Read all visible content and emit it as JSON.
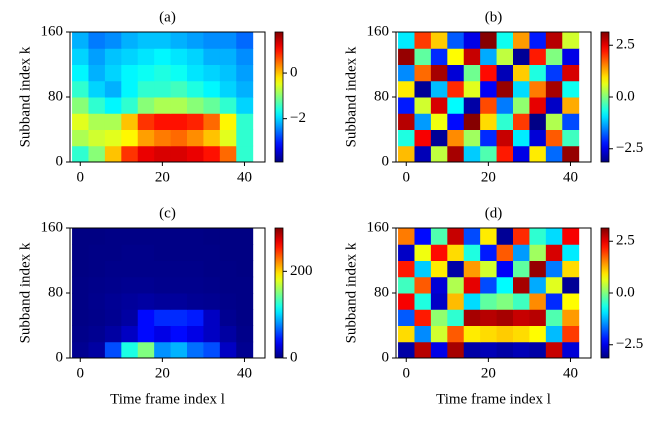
{
  "chart_data": [
    {
      "type": "heatmap",
      "title": "(a)",
      "ylabel": "Subband index k",
      "colormap": "jet",
      "x": [
        0,
        4,
        8,
        12,
        16,
        20,
        24,
        28,
        32,
        36,
        40
      ],
      "y": [
        10,
        30,
        50,
        70,
        90,
        110,
        130,
        150
      ],
      "z": [
        [
          -1.5,
          -1,
          0,
          0.8,
          1.2,
          1.3,
          1.3,
          1.2,
          1,
          0.5,
          -1.5
        ],
        [
          -0.8,
          -0.6,
          -0.5,
          -0.3,
          0.2,
          0.4,
          0.5,
          0.3,
          0,
          -0.5,
          -1.5
        ],
        [
          -0.5,
          -0.8,
          -0.8,
          0,
          0.8,
          1,
          1,
          0.9,
          0.5,
          -0.3,
          -1.5
        ],
        [
          -1,
          -1.5,
          -1.8,
          -1.5,
          -1,
          -0.8,
          -0.8,
          -1,
          -1.2,
          -1.5,
          -2
        ],
        [
          -1.5,
          -2,
          -2.2,
          -1.8,
          -1.5,
          -1.5,
          -1.4,
          -1.6,
          -1.8,
          -2,
          -2.2
        ],
        [
          -1.8,
          -2.2,
          -2,
          -1.8,
          -1.7,
          -1.6,
          -1.7,
          -1.9,
          -2,
          -2.1,
          -2.3
        ],
        [
          -2,
          -2.3,
          -2.1,
          -2,
          -1.9,
          -1.8,
          -1.9,
          -2,
          -2.2,
          -2.2,
          -2.4
        ],
        [
          -2.2,
          -2.5,
          -2.4,
          -2.2,
          -2.1,
          -2.1,
          -2.2,
          -2.3,
          -2.4,
          -2.4,
          -2.6
        ]
      ],
      "xlim": [
        -2.5,
        45
      ],
      "ylim": [
        0,
        160
      ],
      "xticks": [
        0,
        20,
        40
      ],
      "yticks": [
        0,
        80,
        160
      ],
      "clim": [
        -3.9,
        1.8
      ],
      "cticks": [
        {
          "value": -2,
          "label": "−2"
        },
        0
      ]
    },
    {
      "type": "heatmap",
      "title": "(b)",
      "ylabel": "Subband index k",
      "colormap": "jet",
      "x": [
        0,
        4,
        8,
        12,
        16,
        20,
        24,
        28,
        32,
        36,
        40
      ],
      "y": [
        10,
        30,
        50,
        70,
        90,
        110,
        130,
        150
      ],
      "z": [
        [
          1.2,
          -2.8,
          0.4,
          2.9,
          -1.1,
          -0.3,
          2.2,
          -2.5,
          0.9,
          -1.7,
          3.0
        ],
        [
          -0.6,
          2.4,
          -3.0,
          1.5,
          0.2,
          -2.1,
          2.7,
          -0.9,
          -2.6,
          1.8,
          -0.4
        ],
        [
          2.8,
          -1.4,
          0.7,
          -2.3,
          3.1,
          1.0,
          -0.5,
          2.0,
          -3.1,
          0.3,
          -1.9
        ],
        [
          -2.2,
          0.5,
          2.6,
          -0.8,
          -2.9,
          1.9,
          -1.6,
          0.1,
          2.5,
          -2.7,
          1.3
        ],
        [
          0.9,
          -3.0,
          -1.2,
          2.1,
          0.6,
          -2.4,
          3.0,
          -1.0,
          1.6,
          2.9,
          -0.7
        ],
        [
          -1.5,
          1.7,
          2.9,
          -2.6,
          -0.1,
          2.3,
          -2.8,
          1.1,
          -0.6,
          -2.0,
          2.6
        ],
        [
          3.0,
          -0.2,
          -2.1,
          0.8,
          2.7,
          -1.3,
          0.4,
          -3.0,
          2.2,
          0.0,
          -2.5
        ],
        [
          -0.9,
          2.0,
          1.1,
          -1.8,
          -2.5,
          3.1,
          -0.7,
          1.4,
          -2.2,
          2.8,
          0.5
        ]
      ],
      "xlim": [
        -2.5,
        45
      ],
      "ylim": [
        0,
        160
      ],
      "xticks": [
        0,
        20,
        40
      ],
      "yticks": [
        0,
        80,
        160
      ],
      "clim": [
        -3.14,
        3.14
      ],
      "cticks": [
        {
          "value": -2.5,
          "label": "−2.5"
        },
        {
          "value": 0,
          "label": "0.0"
        },
        2.5
      ]
    },
    {
      "type": "heatmap",
      "title": "(c)",
      "ylabel": "Subband index k",
      "xlabel": "Time frame index l",
      "colormap": "jet",
      "x": [
        0,
        4,
        8,
        12,
        16,
        20,
        24,
        28,
        32,
        36,
        40
      ],
      "y": [
        10,
        30,
        50,
        70,
        90,
        110,
        130,
        150
      ],
      "z": [
        [
          5,
          10,
          60,
          120,
          150,
          80,
          90,
          70,
          60,
          20,
          5
        ],
        [
          3,
          5,
          10,
          20,
          40,
          30,
          40,
          30,
          20,
          10,
          3
        ],
        [
          2,
          3,
          5,
          10,
          40,
          50,
          50,
          45,
          20,
          5,
          2
        ],
        [
          2,
          4,
          6,
          8,
          10,
          8,
          8,
          6,
          5,
          3,
          2
        ],
        [
          2,
          3,
          4,
          5,
          5,
          4,
          4,
          4,
          3,
          2,
          2
        ],
        [
          1,
          2,
          3,
          3,
          3,
          3,
          3,
          3,
          2,
          2,
          1
        ],
        [
          1,
          2,
          2,
          3,
          3,
          2,
          2,
          2,
          2,
          1,
          1
        ],
        [
          1,
          1,
          2,
          2,
          2,
          2,
          2,
          2,
          1,
          1,
          1
        ]
      ],
      "xlim": [
        -2.5,
        45
      ],
      "ylim": [
        0,
        160
      ],
      "xticks": [
        0,
        20,
        40
      ],
      "yticks": [
        0,
        80,
        160
      ],
      "clim": [
        0,
        300
      ],
      "cticks": [
        0,
        200
      ]
    },
    {
      "type": "heatmap",
      "title": "(d)",
      "ylabel": "Subband index k",
      "xlabel": "Time frame index l",
      "colormap": "jet",
      "x": [
        0,
        4,
        8,
        12,
        16,
        20,
        24,
        28,
        32,
        36,
        40
      ],
      "y": [
        10,
        30,
        50,
        70,
        90,
        110,
        130,
        150
      ],
      "z": [
        [
          -2.9,
          2.8,
          -2.5,
          2.9,
          -2.9,
          -2.8,
          -2.9,
          -2.8,
          -2.9,
          2.7,
          -2.6
        ],
        [
          1.0,
          -1.5,
          0.5,
          1.8,
          0.9,
          1.0,
          1.1,
          1.0,
          0.8,
          -1.2,
          2.0
        ],
        [
          -1.8,
          2.2,
          0.1,
          -0.5,
          2.9,
          2.8,
          2.9,
          2.7,
          2.8,
          -0.3,
          1.4
        ],
        [
          2.4,
          -0.6,
          -2.7,
          1.2,
          -1.0,
          -0.2,
          0.0,
          -0.4,
          1.5,
          -2.1,
          0.8
        ],
        [
          -0.4,
          1.8,
          -2.6,
          0.3,
          2.5,
          -1.9,
          -0.8,
          2.9,
          -1.3,
          0.6,
          -3.0
        ],
        [
          2.2,
          -1.1,
          0.9,
          -2.9,
          1.4,
          0.5,
          -2.4,
          -0.2,
          3.0,
          -1.6,
          1.0
        ],
        [
          -2.7,
          0.7,
          2.3,
          1.0,
          -0.6,
          -2.2,
          1.8,
          -1.4,
          0.2,
          2.6,
          -0.9
        ],
        [
          1.6,
          -2.3,
          -0.3,
          2.7,
          -1.9,
          0.9,
          -3.0,
          2.1,
          -0.5,
          -1.0,
          2.4
        ]
      ],
      "xlim": [
        -2.5,
        45
      ],
      "ylim": [
        0,
        160
      ],
      "xticks": [
        0,
        20,
        40
      ],
      "yticks": [
        0,
        80,
        160
      ],
      "clim": [
        -3.14,
        3.14
      ],
      "cticks": [
        {
          "value": -2.5,
          "label": "−2.5"
        },
        {
          "value": 0,
          "label": "0.0"
        },
        2.5
      ]
    }
  ]
}
